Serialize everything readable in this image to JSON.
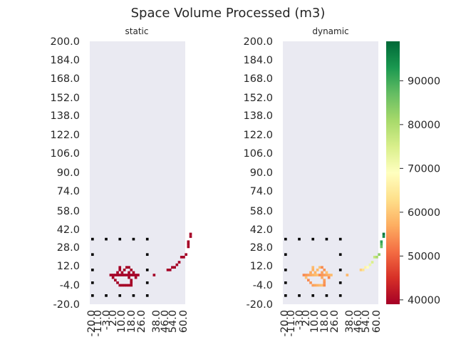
{
  "chart_data": {
    "type": "heatmap",
    "title": "Space Volume Processed (m3)",
    "x_tick_labels": [
      "-20.0",
      "-11.0",
      "-3.0",
      "2.0",
      "10.0",
      "18.0",
      "26.0",
      "38.0",
      "46.0",
      "54.0",
      "60.0"
    ],
    "y_tick_labels": [
      "200.0",
      "184.0",
      "168.0",
      "152.0",
      "138.0",
      "122.0",
      "106.0",
      "90.0",
      "74.0",
      "58.0",
      "42.0",
      "28.0",
      "12.0",
      "-4.0",
      "-20.0"
    ],
    "panels": [
      {
        "name": "static",
        "cell_value_range": [
          39000,
          39500
        ]
      },
      {
        "name": "dynamic",
        "cell_value_range": [
          39000,
          97000
        ]
      }
    ],
    "colorbar": {
      "colormap": "RdYlGn",
      "range": [
        39000,
        99000
      ],
      "ticks": [
        "40000",
        "50000",
        "60000",
        "70000",
        "80000",
        "90000"
      ]
    }
  }
}
